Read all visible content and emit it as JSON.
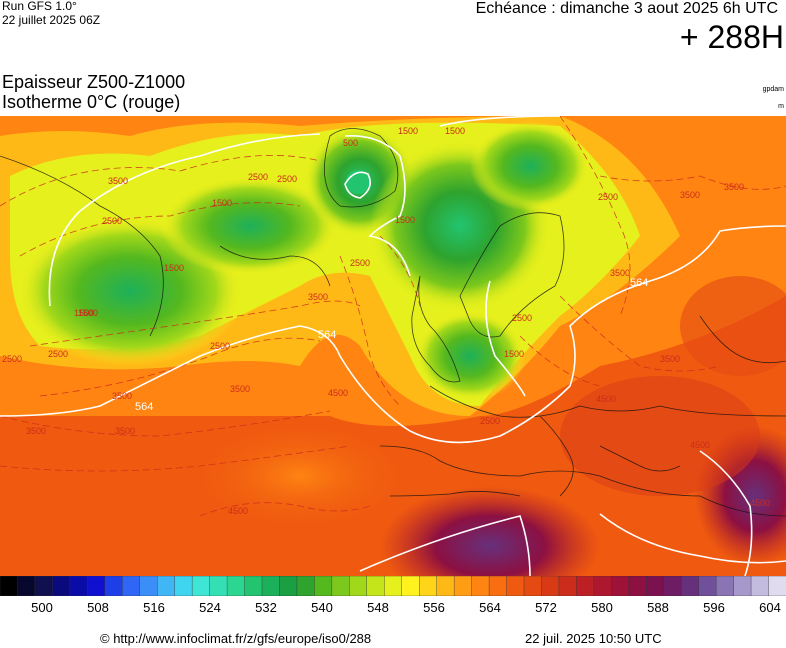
{
  "header": {
    "run_title": "Run GFS 1.0°",
    "run_date": "22 juillet 2025 06Z",
    "valid_time": "Echéance : dimanche 3 aout 2025 6h UTC",
    "forecast_hour": "+ 288H",
    "param_line1": "Epaisseur Z500-Z1000",
    "param_line2": "Isotherme 0°C (rouge)",
    "unit_thickness": "gpdam",
    "unit_iso": "m"
  },
  "map": {
    "thickness_labels": [
      "564",
      "564",
      "564"
    ],
    "iso0_labels": [
      "500",
      "1500",
      "1500",
      "1500",
      "2500",
      "3500",
      "2500",
      "1500",
      "1500",
      "2500",
      "3500",
      "2500",
      "3500",
      "2500",
      "3500",
      "4500",
      "2500",
      "2500",
      "1500",
      "3500",
      "4500",
      "2500",
      "3500",
      "3500",
      "4500",
      "3500",
      "4500",
      "2500",
      "1500",
      "2500",
      "1500",
      "3500",
      "3500",
      "4500"
    ]
  },
  "colorbar": {
    "tick_labels": [
      "500",
      "508",
      "516",
      "524",
      "532",
      "540",
      "548",
      "556",
      "564",
      "572",
      "580",
      "588",
      "596",
      "604"
    ],
    "colors": [
      "#000000",
      "#08082e",
      "#10104f",
      "#0a0a7d",
      "#0b0ba8",
      "#1010d0",
      "#1e3fe8",
      "#2f66f5",
      "#3b8ef7",
      "#41b6f5",
      "#3fd4f0",
      "#3fe6d6",
      "#34e0b3",
      "#2bd690",
      "#22c470",
      "#1db05a",
      "#1a9f42",
      "#2ea32e",
      "#54b81f",
      "#7cc81c",
      "#a2d81a",
      "#c4e51a",
      "#e5f01c",
      "#fff21e",
      "#ffd51a",
      "#ffb916",
      "#ff9d14",
      "#ff8412",
      "#f86e10",
      "#ef5a10",
      "#e44a12",
      "#d93a16",
      "#cc2c1c",
      "#bd2024",
      "#ad182e",
      "#9e1238",
      "#8c1042",
      "#7b124f",
      "#6e1c63",
      "#67307c",
      "#70509a",
      "#8a74b4",
      "#a798cb",
      "#c4bcde",
      "#e0dbee"
    ]
  },
  "footer": {
    "credit": "© http://www.infoclimat.fr/z/gfs/europe/iso0/288",
    "timestamp": "22 juil. 2025 10:50 UTC"
  }
}
